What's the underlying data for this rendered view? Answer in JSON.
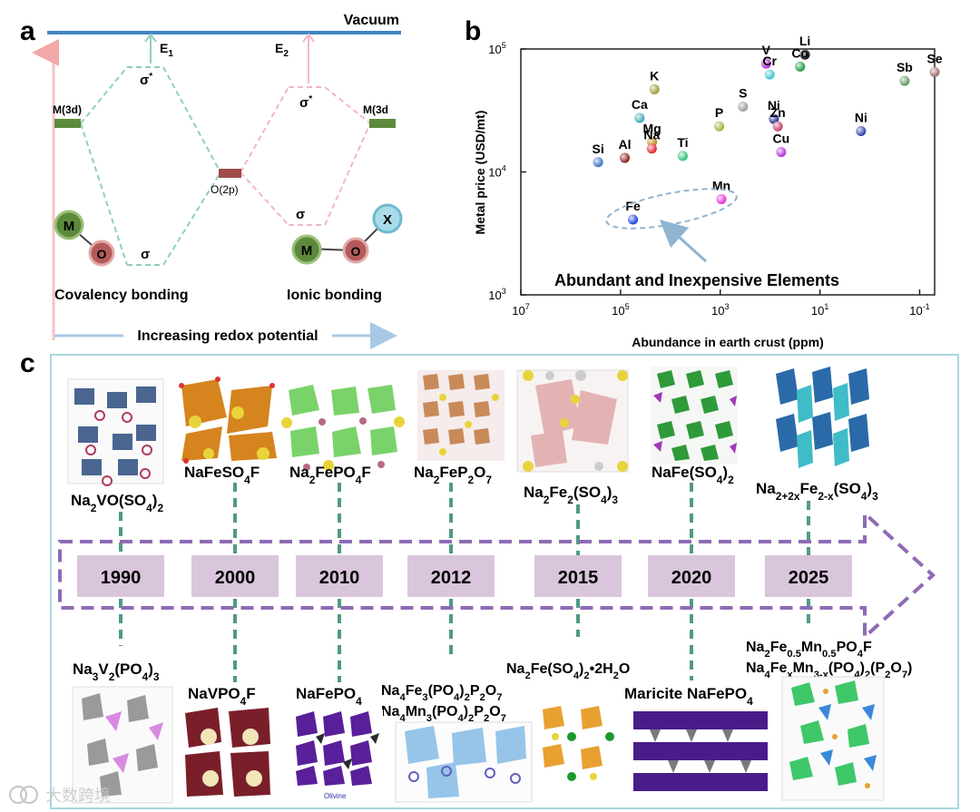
{
  "panel_a": {
    "letter": "a",
    "vacuum": "Vacuum",
    "e1": "E",
    "e1_sub": "1",
    "e2": "E",
    "e2_sub": "2",
    "sigma_star": "σ",
    "star": "*",
    "sigma": "σ",
    "m3d_left": "M(3d)",
    "m3d_right": "M(3d",
    "o2p": "O(2p)",
    "atom_m": "M",
    "atom_o": "O",
    "atom_x": "X",
    "covalency": "Covalency bonding",
    "ionic": "Ionic bonding",
    "redox": "Increasing redox potential",
    "colors": {
      "vacuum": "#3e86c4",
      "cov": "#8fd0bc",
      "ion": "#f2b6c7",
      "level": "#5c8a3c",
      "o2p": "#a14b4b",
      "arrow_up": "#f2a8a8",
      "arrow_right": "#a9c8e6"
    }
  },
  "chart_data": {
    "type": "scatter",
    "letter": "b",
    "xlabel": "Abundance in earth crust (ppm)",
    "ylabel": "Metal price (USD/mt)",
    "x_scale": "log-reversed",
    "y_scale": "log",
    "xlim": [
      10000000,
      0.05
    ],
    "ylim": [
      1000,
      100000
    ],
    "xticks": [
      {
        "value": 10000000,
        "base": "10",
        "exp": "7"
      },
      {
        "value": 100000,
        "base": "10",
        "exp": "5"
      },
      {
        "value": 1000,
        "base": "10",
        "exp": "3"
      },
      {
        "value": 10,
        "base": "10",
        "exp": "1"
      },
      {
        "value": 0.1,
        "base": "10",
        "exp": "-1"
      }
    ],
    "yticks": [
      {
        "value": 1000,
        "base": "10",
        "exp": "3"
      },
      {
        "value": 10000,
        "base": "10",
        "exp": "4"
      },
      {
        "value": 100000,
        "base": "10",
        "exp": "5"
      }
    ],
    "points": [
      {
        "label": "Si",
        "x": 282000,
        "y": 12000,
        "color": "#3a6fc4"
      },
      {
        "label": "Al",
        "x": 82300,
        "y": 13000,
        "color": "#8c1a1a"
      },
      {
        "label": "Mg",
        "x": 23300,
        "y": 17500,
        "color": "#b8860b"
      },
      {
        "label": "Na",
        "x": 23600,
        "y": 15500,
        "color": "#e0202a"
      },
      {
        "label": "Ca",
        "x": 41500,
        "y": 27500,
        "color": "#3fa7b5"
      },
      {
        "label": "K",
        "x": 20900,
        "y": 47000,
        "color": "#9a9a30"
      },
      {
        "label": "Ti",
        "x": 5650,
        "y": 13500,
        "color": "#2ec27a"
      },
      {
        "label": "P",
        "x": 1050,
        "y": 23500,
        "color": "#a3b03a"
      },
      {
        "label": "S",
        "x": 350,
        "y": 34000,
        "color": "#9a9a9a"
      },
      {
        "label": "Cu",
        "x": 60,
        "y": 14500,
        "color": "#b12be0"
      },
      {
        "label": "Mn",
        "x": 950,
        "y": 6000,
        "color": "#e830d8"
      },
      {
        "label": "Fe",
        "x": 56300,
        "y": 4100,
        "color": "#1a3fe0"
      },
      {
        "label": "V",
        "x": 120,
        "y": 76000,
        "color": "#b028d8"
      },
      {
        "label": "Cr",
        "x": 102,
        "y": 62000,
        "color": "#3fc3d6"
      },
      {
        "label": "Li",
        "x": 20,
        "y": 90000,
        "color": "#111111"
      },
      {
        "label": "Co",
        "x": 25,
        "y": 72000,
        "color": "#1a9a3a"
      },
      {
        "label": "Ni",
        "x": 84,
        "y": 27000,
        "color": "#1a2a8c"
      },
      {
        "label": "Zn",
        "x": 70,
        "y": 23500,
        "color": "#c83a6a"
      },
      {
        "label": "Ni",
        "x": 1.5,
        "y": 21500,
        "color": "#2a3aa8"
      },
      {
        "label": "Sb",
        "x": 0.2,
        "y": 55000,
        "color": "#5a9a5a"
      },
      {
        "label": "Se",
        "x": 0.05,
        "y": 65000,
        "color": "#9a6a6a"
      }
    ],
    "annotation": "Abundant and Inexpensive Elements"
  },
  "panel_c": {
    "letter": "c",
    "years": [
      "1990",
      "2000",
      "2010",
      "2012",
      "2015",
      "2020",
      "2025"
    ],
    "top_labels": [
      [
        "Na",
        {
          "sub": "2"
        },
        "VO(SO",
        {
          "sub": "4"
        },
        ")",
        {
          "sub": "2"
        }
      ],
      [
        "NaFeSO",
        {
          "sub": "4"
        },
        "F"
      ],
      [
        "Na",
        {
          "sub": "2"
        },
        "FePO",
        {
          "sub": "4"
        },
        "F"
      ],
      [
        "Na",
        {
          "sub": "2"
        },
        "FeP",
        {
          "sub": "2"
        },
        "O",
        {
          "sub": "7"
        }
      ],
      [
        "Na",
        {
          "sub": "2"
        },
        "Fe",
        {
          "sub": "2"
        },
        "(SO",
        {
          "sub": "4"
        },
        ")",
        {
          "sub": "3"
        }
      ],
      [
        "NaFe(SO",
        {
          "sub": "4"
        },
        ")",
        {
          "sub": "2"
        }
      ],
      [
        "Na",
        {
          "sub": "2+2x"
        },
        "Fe",
        {
          "sub": "2-x"
        },
        "(SO",
        {
          "sub": "4"
        },
        ")",
        {
          "sub": "3"
        }
      ]
    ],
    "bottom_labels": [
      [
        "Na",
        {
          "sub": "3"
        },
        "V",
        {
          "sub": "2"
        },
        "(PO",
        {
          "sub": "4"
        },
        ")",
        {
          "sub": "3"
        }
      ],
      [
        "NaVPO",
        {
          "sub": "4"
        },
        "F"
      ],
      [
        "NaFePO",
        {
          "sub": "4"
        }
      ],
      [
        "Na",
        {
          "sub": "4"
        },
        "Fe",
        {
          "sub": "3"
        },
        "(PO",
        {
          "sub": "4"
        },
        ")",
        {
          "sub": "2"
        },
        "P",
        {
          "sub": "2"
        },
        "O",
        {
          "sub": "7"
        }
      ],
      [
        "Na",
        {
          "sub": "4"
        },
        "Mn",
        {
          "sub": "3"
        },
        "(PO",
        {
          "sub": "4"
        },
        ")",
        {
          "sub": "2"
        },
        "P",
        {
          "sub": "2"
        },
        "O",
        {
          "sub": "7"
        }
      ],
      [
        "Na",
        {
          "sub": "2"
        },
        "Fe(SO",
        {
          "sub": "4"
        },
        ")",
        {
          "sub": "2"
        },
        "•2H",
        {
          "sub": "2"
        },
        "O"
      ],
      [
        "Maricite NaFePO",
        {
          "sub": "4"
        }
      ],
      [
        "Na",
        {
          "sub": "2"
        },
        "Fe",
        {
          "sub": "0.5"
        },
        "Mn",
        {
          "sub": "0.5"
        },
        "PO",
        {
          "sub": "4"
        },
        "F"
      ],
      [
        "Na",
        {
          "sub": "4"
        },
        "Fe",
        {
          "sub": "x"
        },
        "Mn",
        {
          "sub": "3-x"
        },
        "(PO",
        {
          "sub": "4"
        },
        ")",
        {
          "sub": "2"
        },
        "(P",
        {
          "sub": "2"
        },
        "O",
        {
          "sub": "7"
        },
        ")"
      ]
    ],
    "olivine_tag": "Olivine",
    "colors": {
      "frame": "#a9d6e0",
      "arrow": "#8e6bb5",
      "year_box": "#d9c5dc",
      "connector": "#4f9a86"
    }
  },
  "watermark": "大数跨境"
}
